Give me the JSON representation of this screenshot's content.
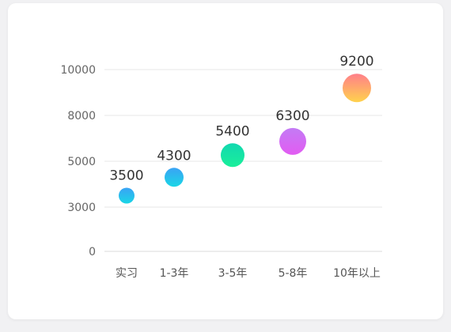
{
  "chart_data": {
    "type": "scatter",
    "categories": [
      "实习",
      "1-3年",
      "3-5年",
      "5-8年",
      "10年以上"
    ],
    "values": [
      3500,
      4300,
      5400,
      6300,
      9200
    ],
    "data_labels": [
      "3500",
      "4300",
      "5400",
      "6300",
      "9200"
    ],
    "y_ticks": [
      0,
      3000,
      5000,
      8000,
      10000
    ],
    "y_tick_labels": [
      "0",
      "3000",
      "5000",
      "8000",
      "10000"
    ],
    "grid": true,
    "colors": [
      [
        "#3aa3f5",
        "#1ad6e6"
      ],
      [
        "#3aa3f5",
        "#1ad6e6"
      ],
      [
        "#12d8b0",
        "#1aef9a"
      ],
      [
        "#c37bf5",
        "#e25cf2"
      ],
      [
        "#ff7f8a",
        "#ffd24d"
      ]
    ]
  }
}
